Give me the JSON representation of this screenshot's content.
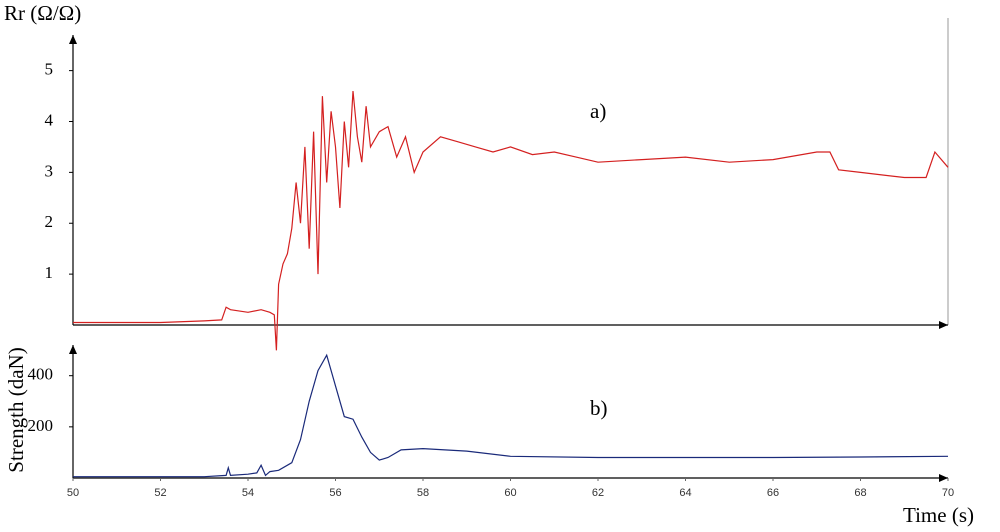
{
  "chart_data": [
    {
      "type": "line",
      "ylabel": "Rr (Ω/Ω)",
      "annotation": "a)",
      "xlim": [
        50,
        70
      ],
      "ylim": [
        0,
        5.7
      ],
      "yticks": [
        1,
        2,
        3,
        4,
        5
      ],
      "x": [
        50,
        51,
        52,
        53,
        53.4,
        53.5,
        53.6,
        54,
        54.3,
        54.5,
        54.6,
        54.65,
        54.7,
        54.8,
        54.9,
        55.0,
        55.1,
        55.2,
        55.3,
        55.4,
        55.5,
        55.6,
        55.7,
        55.8,
        55.9,
        56.0,
        56.1,
        56.2,
        56.3,
        56.4,
        56.5,
        56.6,
        56.7,
        56.8,
        57.0,
        57.2,
        57.4,
        57.6,
        57.8,
        58.0,
        58.4,
        58.8,
        59.2,
        59.6,
        60,
        60.5,
        61,
        61.5,
        62,
        63,
        64,
        65,
        66,
        67,
        67.3,
        67.5,
        68,
        69,
        69.5,
        69.7,
        70
      ],
      "series": [
        {
          "color": "#d42020",
          "values": [
            0.05,
            0.05,
            0.05,
            0.08,
            0.1,
            0.35,
            0.3,
            0.25,
            0.3,
            0.25,
            0.2,
            -0.5,
            0.8,
            1.2,
            1.4,
            1.9,
            2.8,
            2.0,
            3.5,
            1.5,
            3.8,
            1.0,
            4.5,
            2.8,
            4.2,
            3.5,
            2.3,
            4.0,
            3.1,
            4.6,
            3.7,
            3.2,
            4.3,
            3.5,
            3.8,
            3.9,
            3.3,
            3.7,
            3.0,
            3.4,
            3.7,
            3.6,
            3.5,
            3.4,
            3.5,
            3.35,
            3.4,
            3.3,
            3.2,
            3.25,
            3.3,
            3.2,
            3.25,
            3.4,
            3.4,
            3.05,
            3.0,
            2.9,
            2.9,
            3.4,
            3.1
          ]
        }
      ]
    },
    {
      "type": "line",
      "ylabel": "Strength (daN)",
      "xlabel": "Time (s)",
      "annotation": "b)",
      "xlim": [
        50,
        70
      ],
      "ylim": [
        0,
        520
      ],
      "yticks": [
        200,
        400
      ],
      "xticks": [
        50,
        52,
        54,
        56,
        58,
        60,
        62,
        64,
        66,
        68,
        70
      ],
      "x": [
        50,
        52,
        53,
        53.5,
        53.55,
        53.6,
        54,
        54.2,
        54.3,
        54.4,
        54.5,
        54.7,
        55,
        55.2,
        55.4,
        55.6,
        55.8,
        56,
        56.2,
        56.4,
        56.6,
        56.8,
        57,
        57.2,
        57.5,
        58,
        59,
        60,
        62,
        64,
        66,
        68,
        70
      ],
      "series": [
        {
          "color": "#1a2a7a",
          "values": [
            5,
            5,
            5,
            10,
            40,
            10,
            15,
            20,
            50,
            10,
            25,
            30,
            60,
            150,
            300,
            420,
            480,
            360,
            240,
            230,
            160,
            100,
            70,
            80,
            110,
            115,
            105,
            85,
            80,
            80,
            80,
            82,
            85
          ]
        }
      ]
    }
  ]
}
